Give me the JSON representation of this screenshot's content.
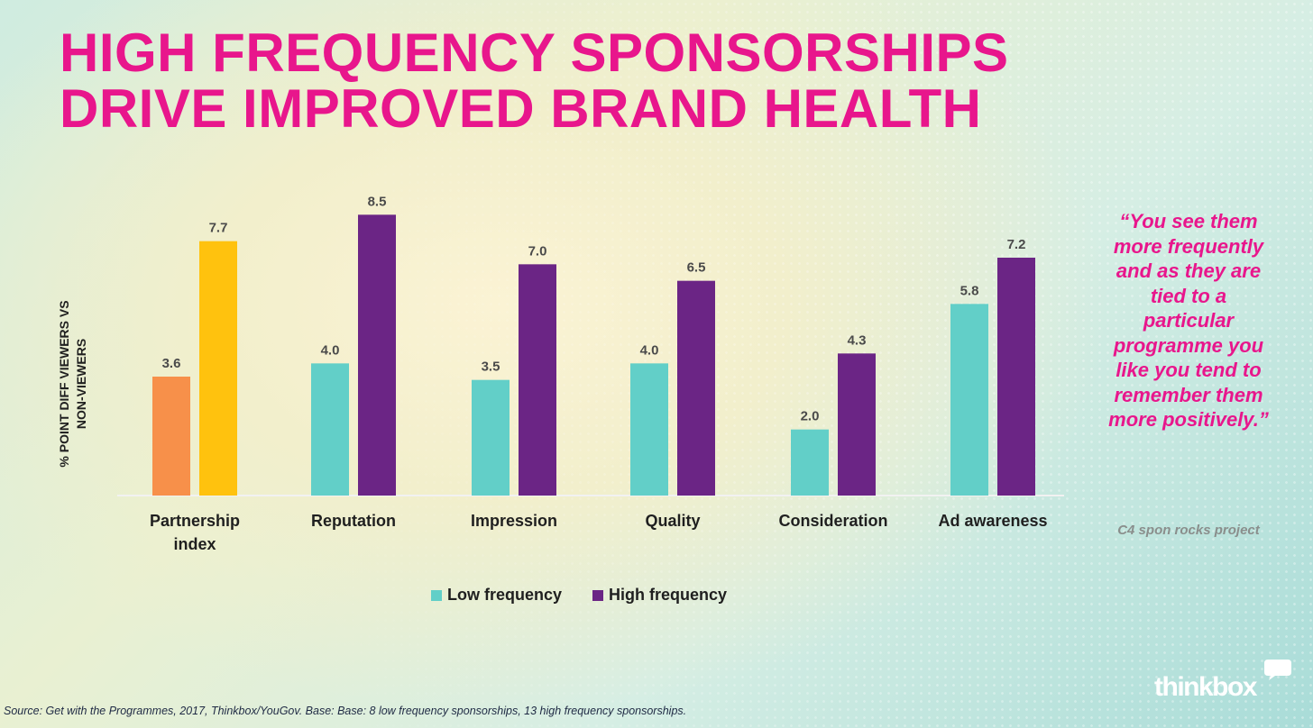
{
  "title": {
    "line1": "HIGH FREQUENCY SPONSORSHIPS",
    "line2": "DRIVE IMPROVED BRAND HEALTH"
  },
  "chart_data": {
    "type": "bar",
    "title": "HIGH FREQUENCY SPONSORSHIPS DRIVE IMPROVED BRAND HEALTH",
    "ylabel_lines": [
      "% POINT DIFF VIEWERS VS",
      "NON-VIEWERS"
    ],
    "xlabel": "",
    "ylim": [
      0,
      9.0
    ],
    "grid": false,
    "legend_position": "bottom",
    "categories": [
      [
        "Partnership",
        "index"
      ],
      [
        "Reputation"
      ],
      [
        "Impression"
      ],
      [
        "Quality"
      ],
      [
        "Consideration"
      ],
      [
        "Ad awareness"
      ]
    ],
    "series": [
      {
        "name": "Low frequency",
        "values": [
          3.6,
          4.0,
          3.5,
          4.0,
          2.0,
          5.8
        ],
        "labels": [
          "3.6",
          "4.0",
          "3.5",
          "4.0",
          "2.0",
          "5.8"
        ]
      },
      {
        "name": "High frequency",
        "values": [
          7.7,
          8.5,
          7.0,
          6.5,
          4.3,
          7.2
        ],
        "labels": [
          "7.7",
          "8.5",
          "7.0",
          "6.5",
          "4.3",
          "7.2"
        ]
      }
    ],
    "colors": {
      "low": "#62cfc8",
      "high": "#6b2585",
      "partnership_low": "#f7904a",
      "partnership_high": "#ffc20e"
    },
    "baseline_color": "#f2f2f2"
  },
  "legend": {
    "low_label": "Low frequency",
    "high_label": "High frequency"
  },
  "quote": {
    "text": "“You see them more frequently and as they are tied to a particular programme you like you tend to remember them more positively.”",
    "source": "C4 spon rocks project"
  },
  "source_note": "Source: Get with the Programmes, 2017, Thinkbox/YouGov.  Base: Base: 8 low frequency sponsorships, 13 high frequency sponsorships.",
  "brand": {
    "name": "thinkbox"
  }
}
